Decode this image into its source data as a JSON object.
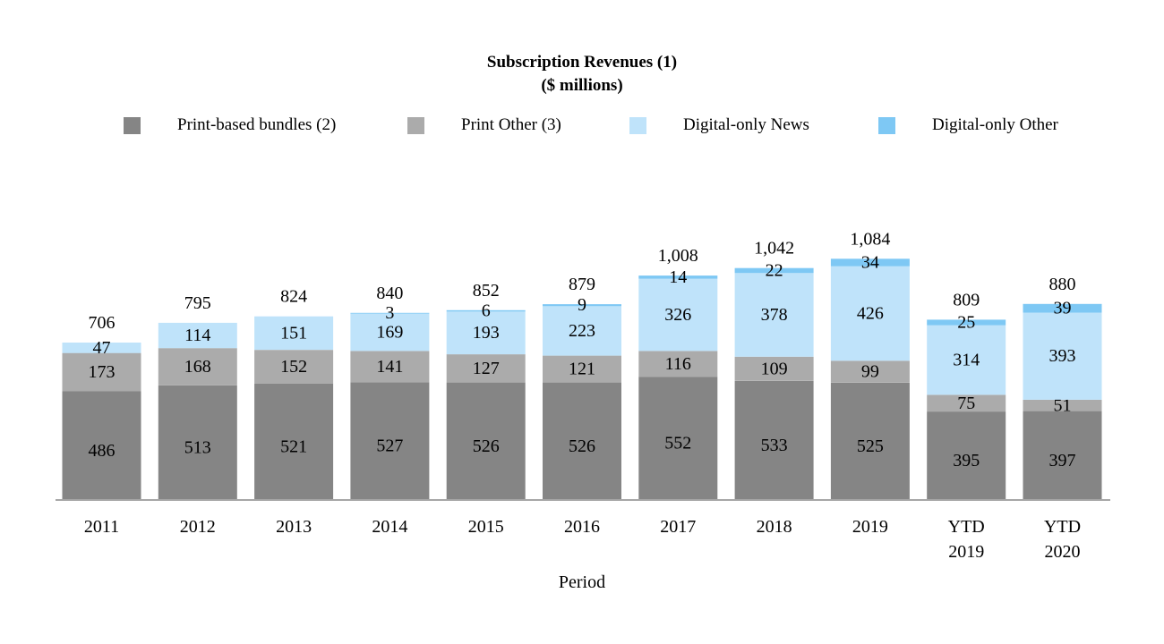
{
  "chart_data": {
    "type": "bar",
    "stacked": true,
    "title": "Subscription Revenues (1)",
    "subtitle": "($ millions)",
    "xlabel": "Period",
    "ylabel": "",
    "ylim": [
      0,
      1150
    ],
    "grid": false,
    "legend_position": "top",
    "categories": [
      [
        "2011"
      ],
      [
        "2012"
      ],
      [
        "2013"
      ],
      [
        "2014"
      ],
      [
        "2015"
      ],
      [
        "2016"
      ],
      [
        "2017"
      ],
      [
        "2018"
      ],
      [
        "2019"
      ],
      [
        "YTD",
        "2019"
      ],
      [
        "YTD",
        "2020"
      ]
    ],
    "series": [
      {
        "name": "Print-based bundles (2)",
        "color": "#858585",
        "values": [
          486,
          513,
          521,
          527,
          526,
          526,
          552,
          533,
          525,
          395,
          397
        ]
      },
      {
        "name": "Print Other (3)",
        "color": "#ababab",
        "values": [
          173,
          168,
          152,
          141,
          127,
          121,
          116,
          109,
          99,
          75,
          51
        ]
      },
      {
        "name": "Digital-only News",
        "color": "#bfe3fa",
        "values": [
          47,
          114,
          151,
          169,
          193,
          223,
          326,
          378,
          426,
          314,
          393
        ]
      },
      {
        "name": "Digital-only Other",
        "color": "#7ec8f4",
        "values": [
          null,
          null,
          null,
          3,
          6,
          9,
          14,
          22,
          34,
          25,
          39
        ]
      }
    ],
    "totals": [
      706,
      795,
      824,
      840,
      852,
      879,
      "1,008",
      "1,042",
      "1,084",
      809,
      880
    ],
    "axis_color": "#a6a6a6"
  }
}
